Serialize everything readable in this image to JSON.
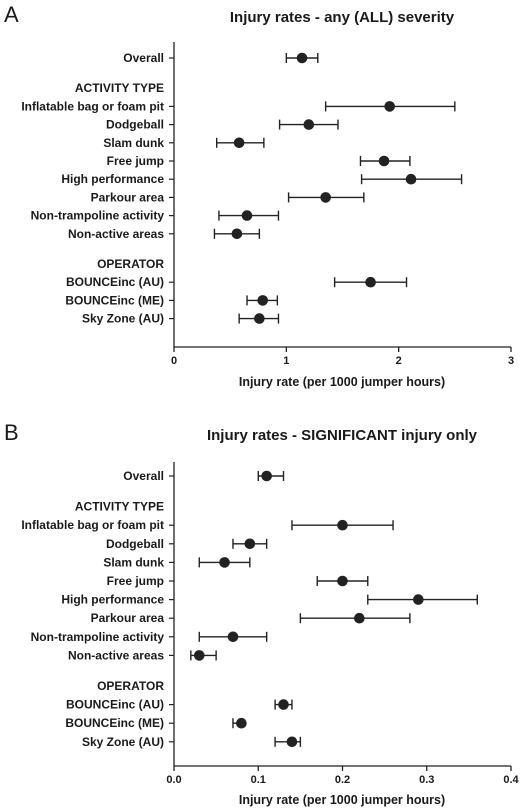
{
  "chart_data": [
    {
      "type": "scatter",
      "panel": "A",
      "title": "Injury rates - any (ALL) severity",
      "xlabel": "Injury rate (per 1000 jumper hours)",
      "ylabel": "",
      "xlim": [
        0,
        3
      ],
      "xticks": [
        "0",
        "1",
        "2",
        "3"
      ],
      "grid": false,
      "categories": [
        {
          "label": "Overall",
          "section": false,
          "estimate": 1.14,
          "lower": 1.0,
          "upper": 1.28
        },
        {
          "label": "ACTIVITY TYPE",
          "section": true
        },
        {
          "label": "Inflatable bag or foam pit",
          "section": false,
          "estimate": 1.92,
          "lower": 1.35,
          "upper": 2.5
        },
        {
          "label": "Dodgeball",
          "section": false,
          "estimate": 1.2,
          "lower": 0.94,
          "upper": 1.46
        },
        {
          "label": "Slam dunk",
          "section": false,
          "estimate": 0.58,
          "lower": 0.38,
          "upper": 0.8
        },
        {
          "label": "Free jump",
          "section": false,
          "estimate": 1.87,
          "lower": 1.66,
          "upper": 2.1
        },
        {
          "label": "High performance",
          "section": false,
          "estimate": 2.11,
          "lower": 1.67,
          "upper": 2.56
        },
        {
          "label": "Parkour area",
          "section": false,
          "estimate": 1.35,
          "lower": 1.02,
          "upper": 1.69
        },
        {
          "label": "Non-trampoline activity",
          "section": false,
          "estimate": 0.65,
          "lower": 0.4,
          "upper": 0.93
        },
        {
          "label": "Non-active areas",
          "section": false,
          "estimate": 0.56,
          "lower": 0.36,
          "upper": 0.76
        },
        {
          "label": "OPERATOR",
          "section": true
        },
        {
          "label": "BOUNCEinc (AU)",
          "section": false,
          "estimate": 1.75,
          "lower": 1.43,
          "upper": 2.07
        },
        {
          "label": "BOUNCEinc (ME)",
          "section": false,
          "estimate": 0.79,
          "lower": 0.65,
          "upper": 0.92
        },
        {
          "label": "Sky Zone (AU)",
          "section": false,
          "estimate": 0.76,
          "lower": 0.58,
          "upper": 0.93
        }
      ]
    },
    {
      "type": "scatter",
      "panel": "B",
      "title": "Injury rates - SIGNIFICANT injury only",
      "xlabel": "Injury rate (per 1000 jumper hours)",
      "ylabel": "",
      "xlim": [
        0,
        0.4
      ],
      "xticks": [
        "0.0",
        "0.1",
        "0.2",
        "0.3",
        "0.4"
      ],
      "grid": false,
      "categories": [
        {
          "label": "Overall",
          "section": false,
          "estimate": 0.11,
          "lower": 0.1,
          "upper": 0.13
        },
        {
          "label": "ACTIVITY TYPE",
          "section": true
        },
        {
          "label": "Inflatable bag or foam pit",
          "section": false,
          "estimate": 0.2,
          "lower": 0.14,
          "upper": 0.26
        },
        {
          "label": "Dodgeball",
          "section": false,
          "estimate": 0.09,
          "lower": 0.07,
          "upper": 0.11
        },
        {
          "label": "Slam dunk",
          "section": false,
          "estimate": 0.06,
          "lower": 0.03,
          "upper": 0.09
        },
        {
          "label": "Free jump",
          "section": false,
          "estimate": 0.2,
          "lower": 0.17,
          "upper": 0.23
        },
        {
          "label": "High performance",
          "section": false,
          "estimate": 0.29,
          "lower": 0.23,
          "upper": 0.36
        },
        {
          "label": "Parkour area",
          "section": false,
          "estimate": 0.22,
          "lower": 0.15,
          "upper": 0.28
        },
        {
          "label": "Non-trampoline activity",
          "section": false,
          "estimate": 0.07,
          "lower": 0.03,
          "upper": 0.11
        },
        {
          "label": "Non-active areas",
          "section": false,
          "estimate": 0.03,
          "lower": 0.02,
          "upper": 0.05
        },
        {
          "label": "OPERATOR",
          "section": true
        },
        {
          "label": "BOUNCEinc (AU)",
          "section": false,
          "estimate": 0.13,
          "lower": 0.12,
          "upper": 0.14
        },
        {
          "label": "BOUNCEinc (ME)",
          "section": false,
          "estimate": 0.08,
          "lower": 0.07,
          "upper": 0.08
        },
        {
          "label": "Sky Zone (AU)",
          "section": false,
          "estimate": 0.14,
          "lower": 0.12,
          "upper": 0.15
        }
      ]
    }
  ]
}
